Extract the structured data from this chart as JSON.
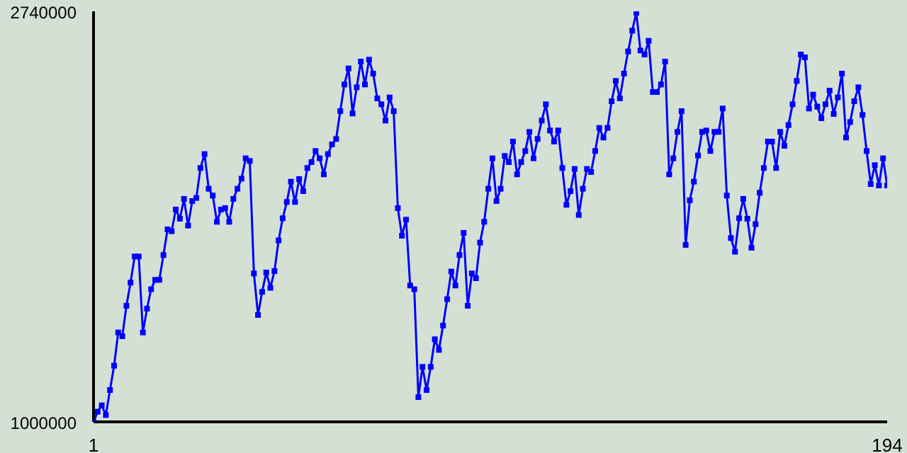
{
  "chart_data": {
    "type": "line",
    "x": [
      1,
      2,
      3,
      4,
      5,
      6,
      7,
      8,
      9,
      10,
      11,
      12,
      13,
      14,
      15,
      16,
      17,
      18,
      19,
      20,
      21,
      22,
      23,
      24,
      25,
      26,
      27,
      28,
      29,
      30,
      31,
      32,
      33,
      34,
      35,
      36,
      37,
      38,
      39,
      40,
      41,
      42,
      43,
      44,
      45,
      46,
      47,
      48,
      49,
      50,
      51,
      52,
      53,
      54,
      55,
      56,
      57,
      58,
      59,
      60,
      61,
      62,
      63,
      64,
      65,
      66,
      67,
      68,
      69,
      70,
      71,
      72,
      73,
      74,
      75,
      76,
      77,
      78,
      79,
      80,
      81,
      82,
      83,
      84,
      85,
      86,
      87,
      88,
      89,
      90,
      91,
      92,
      93,
      94,
      95,
      96,
      97,
      98,
      99,
      100,
      101,
      102,
      103,
      104,
      105,
      106,
      107,
      108,
      109,
      110,
      111,
      112,
      113,
      114,
      115,
      116,
      117,
      118,
      119,
      120,
      121,
      122,
      123,
      124,
      125,
      126,
      127,
      128,
      129,
      130,
      131,
      132,
      133,
      134,
      135,
      136,
      137,
      138,
      139,
      140,
      141,
      142,
      143,
      144,
      145,
      146,
      147,
      148,
      149,
      150,
      151,
      152,
      153,
      154,
      155,
      156,
      157,
      158,
      159,
      160,
      161,
      162,
      163,
      164,
      165,
      166,
      167,
      168,
      169,
      170,
      171,
      172,
      173,
      174,
      175,
      176,
      177,
      178,
      179,
      180,
      181,
      182,
      183,
      184,
      185,
      186,
      187,
      188,
      189,
      190,
      191,
      192,
      193,
      194
    ],
    "series": [
      {
        "color": "#0000ff",
        "values": [
          1000000,
          1043000,
          1070000,
          1029000,
          1135000,
          1238000,
          1379000,
          1363000,
          1492000,
          1590000,
          1701000,
          1701000,
          1379000,
          1480000,
          1562000,
          1602000,
          1602000,
          1707000,
          1816000,
          1808000,
          1900000,
          1861000,
          1945000,
          1832000,
          1936000,
          1949000,
          2076000,
          2135000,
          1988000,
          1959000,
          1848000,
          1900000,
          1906000,
          1848000,
          1945000,
          1988000,
          2031000,
          2117000,
          2106000,
          1629000,
          1453000,
          1551000,
          1633000,
          1568000,
          1639000,
          1769000,
          1863000,
          1932000,
          2018000,
          1932000,
          2029000,
          1978000,
          2076000,
          2101000,
          2148000,
          2117000,
          2049000,
          2135000,
          2176000,
          2199000,
          2317000,
          2430000,
          2498000,
          2307000,
          2418000,
          2527000,
          2430000,
          2535000,
          2476000,
          2371000,
          2346000,
          2277000,
          2375000,
          2317000,
          1906000,
          1789000,
          1857000,
          1578000,
          1562000,
          1105000,
          1233000,
          1135000,
          1233000,
          1350000,
          1305000,
          1408000,
          1520000,
          1637000,
          1578000,
          1707000,
          1801000,
          1492000,
          1629000,
          1609000,
          1760000,
          1848000,
          1988000,
          2117000,
          1936000,
          1988000,
          2127000,
          2101000,
          2188000,
          2049000,
          2101000,
          2148000,
          2229000,
          2117000,
          2199000,
          2277000,
          2346000,
          2235000,
          2188000,
          2235000,
          2076000,
          1920000,
          1978000,
          2072000,
          1877000,
          1988000,
          2072000,
          2059000,
          2148000,
          2246000,
          2205000,
          2246000,
          2359000,
          2445000,
          2371000,
          2476000,
          2570000,
          2658000,
          2734000,
          2574000,
          2557000,
          2615000,
          2398000,
          2398000,
          2430000,
          2527000,
          2049000,
          2117000,
          2229000,
          2317000,
          1750000,
          1939000,
          2018000,
          2129000,
          2229000,
          2235000,
          2148000,
          2229000,
          2229000,
          2328000,
          1959000,
          1779000,
          1721000,
          1863000,
          1945000,
          1861000,
          1738000,
          1838000,
          1971000,
          2076000,
          2188000,
          2188000,
          2076000,
          2229000,
          2170000,
          2258000,
          2346000,
          2445000,
          2557000,
          2545000,
          2328000,
          2387000,
          2336000,
          2287000,
          2346000,
          2404000,
          2305000,
          2375000,
          2476000,
          2205000,
          2271000,
          2359000,
          2418000,
          2301000,
          2148000,
          2008000,
          2088000,
          2002000,
          2117000,
          2002000
        ]
      }
    ],
    "xlim": [
      1,
      194
    ],
    "xticks": [
      1,
      194
    ],
    "ylim": [
      1000000,
      2740000
    ],
    "yticks": [
      1000000,
      2740000
    ],
    "grid": false,
    "legend": false,
    "marker": "square",
    "line_style": "solid"
  }
}
